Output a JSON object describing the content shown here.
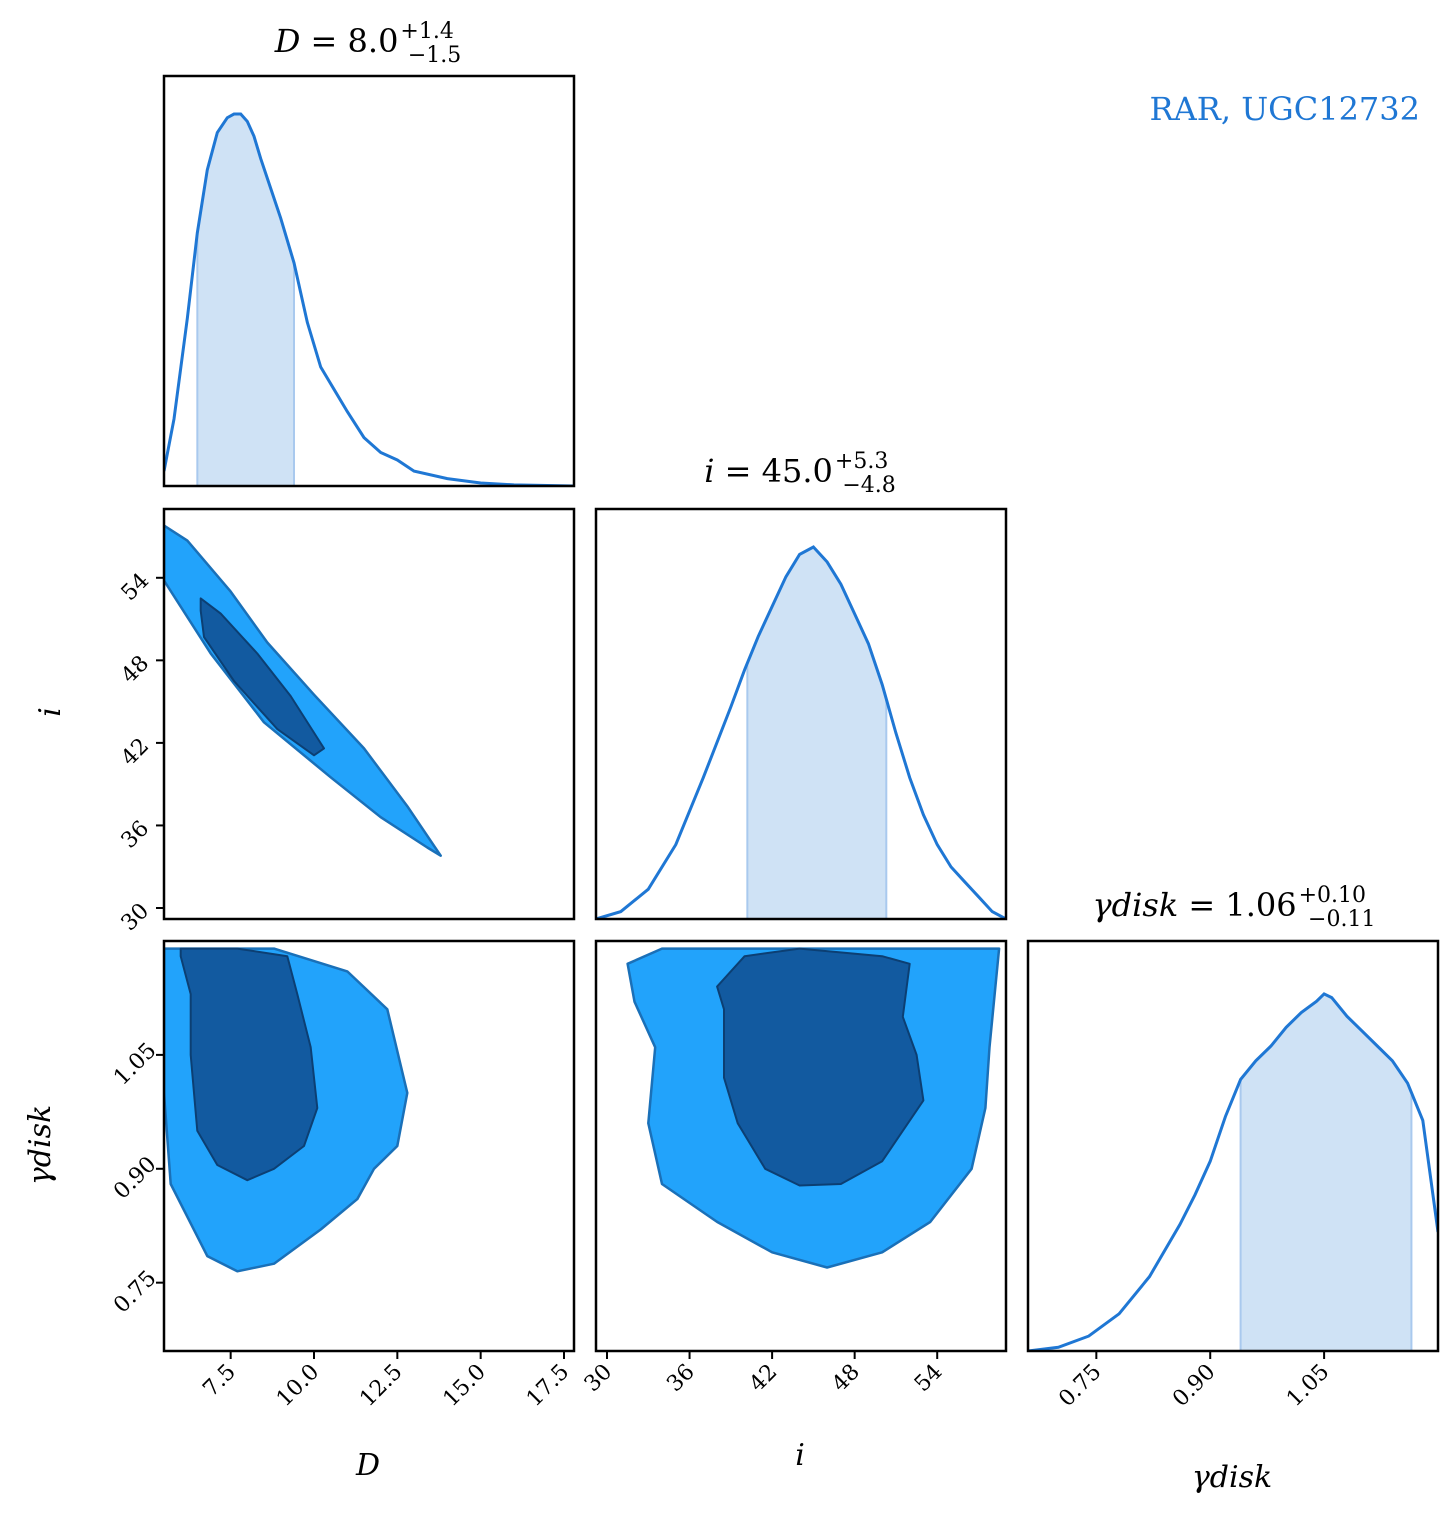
{
  "legend_label": "RAR, UGC12732",
  "colors": {
    "line": "#1f77d4",
    "band": "#cfe2f5",
    "contour_outer": "#22a3fb",
    "contour_inner": "#125aa0",
    "contour_edge": "#1a70b8"
  },
  "chart_data": {
    "type": "corner",
    "params": [
      {
        "symbol": "D",
        "axis_label": "D",
        "title": {
          "lhs": "D",
          "median": "8.0",
          "plus": "+1.4",
          "minus": "−1.5"
        },
        "range": [
          5.5,
          17.8
        ],
        "ticks": [
          "7.5",
          "10.0",
          "12.5",
          "15.0",
          "17.5"
        ],
        "median": 8.0,
        "ci": [
          6.5,
          9.4
        ]
      },
      {
        "symbol": "i",
        "axis_label": "i",
        "title": {
          "lhs": "i",
          "median": "45.0",
          "plus": "+5.3",
          "minus": "−4.8"
        },
        "range": [
          29.2,
          59.0
        ],
        "ticks": [
          "30",
          "36",
          "42",
          "48",
          "54"
        ],
        "median": 45.0,
        "ci": [
          40.2,
          50.3
        ]
      },
      {
        "symbol": "γdisk",
        "axis_label": "γdisk",
        "title": {
          "lhs": "γdisk",
          "median": "1.06",
          "plus": "+0.10",
          "minus": "−0.11"
        },
        "range": [
          0.66,
          1.2
        ],
        "ticks": [
          "0.75",
          "0.90",
          "1.05"
        ],
        "median": 1.06,
        "ci": [
          0.94,
          1.165
        ]
      }
    ],
    "marginals": [
      {
        "param": "D",
        "x": [
          5.5,
          5.8,
          6.2,
          6.5,
          6.8,
          7.1,
          7.4,
          7.6,
          7.8,
          8.0,
          8.2,
          8.4,
          8.7,
          9.0,
          9.4,
          9.8,
          10.2,
          10.6,
          11.0,
          11.5,
          12.0,
          12.5,
          13.0,
          14.0,
          15.0,
          16.0,
          17.8
        ],
        "y": [
          0.04,
          0.18,
          0.45,
          0.68,
          0.85,
          0.95,
          0.99,
          1.0,
          1.0,
          0.98,
          0.94,
          0.88,
          0.8,
          0.72,
          0.6,
          0.44,
          0.32,
          0.26,
          0.2,
          0.13,
          0.09,
          0.07,
          0.04,
          0.02,
          0.008,
          0.003,
          0.0
        ]
      },
      {
        "param": "i",
        "x": [
          29.2,
          31.0,
          33.0,
          35.0,
          37.0,
          39.0,
          40.0,
          41.0,
          42.0,
          43.0,
          44.0,
          45.0,
          46.0,
          47.0,
          48.0,
          49.0,
          50.0,
          51.0,
          52.0,
          53.0,
          54.0,
          55.0,
          56.0,
          57.0,
          58.0,
          59.0
        ],
        "y": [
          0.0,
          0.02,
          0.08,
          0.2,
          0.38,
          0.57,
          0.67,
          0.76,
          0.84,
          0.92,
          0.98,
          1.0,
          0.96,
          0.9,
          0.82,
          0.74,
          0.63,
          0.5,
          0.38,
          0.28,
          0.2,
          0.14,
          0.1,
          0.06,
          0.02,
          0.0
        ]
      },
      {
        "param": "γdisk",
        "x": [
          0.66,
          0.7,
          0.74,
          0.78,
          0.82,
          0.86,
          0.88,
          0.9,
          0.92,
          0.94,
          0.96,
          0.98,
          1.0,
          1.02,
          1.04,
          1.05,
          1.06,
          1.08,
          1.1,
          1.12,
          1.14,
          1.16,
          1.18,
          1.2
        ],
        "y": [
          0.0,
          0.01,
          0.04,
          0.1,
          0.2,
          0.34,
          0.42,
          0.51,
          0.63,
          0.73,
          0.78,
          0.82,
          0.87,
          0.91,
          0.94,
          0.96,
          0.95,
          0.9,
          0.86,
          0.82,
          0.78,
          0.72,
          0.62,
          0.32
        ]
      }
    ],
    "contours": [
      {
        "x_param": "D",
        "y_param": "i",
        "outer": [
          [
            5.5,
            57.8
          ],
          [
            6.2,
            56.7
          ],
          [
            7.5,
            53.0
          ],
          [
            8.6,
            49.3
          ],
          [
            10.0,
            45.5
          ],
          [
            11.5,
            41.6
          ],
          [
            12.8,
            37.4
          ],
          [
            13.8,
            33.8
          ],
          [
            13.4,
            34.4
          ],
          [
            12.0,
            36.6
          ],
          [
            10.5,
            39.5
          ],
          [
            8.5,
            43.5
          ],
          [
            6.9,
            48.5
          ],
          [
            5.5,
            53.8
          ]
        ],
        "inner": [
          [
            6.6,
            52.5
          ],
          [
            7.2,
            51.4
          ],
          [
            8.3,
            48.5
          ],
          [
            9.3,
            45.4
          ],
          [
            10.3,
            41.6
          ],
          [
            10.0,
            41.1
          ],
          [
            8.9,
            43.0
          ],
          [
            7.6,
            46.5
          ],
          [
            6.7,
            49.7
          ],
          [
            6.6,
            51.6
          ]
        ]
      },
      {
        "x_param": "D",
        "y_param": "γdisk",
        "outer": [
          [
            5.5,
            1.19
          ],
          [
            8.8,
            1.19
          ],
          [
            11.0,
            1.16
          ],
          [
            12.2,
            1.11
          ],
          [
            12.8,
            1.0
          ],
          [
            12.5,
            0.93
          ],
          [
            11.8,
            0.9
          ],
          [
            11.3,
            0.86
          ],
          [
            10.2,
            0.82
          ],
          [
            8.8,
            0.775
          ],
          [
            7.7,
            0.765
          ],
          [
            6.8,
            0.785
          ],
          [
            5.7,
            0.88
          ],
          [
            5.5,
            1.0
          ]
        ],
        "inner": [
          [
            6.0,
            1.19
          ],
          [
            7.7,
            1.19
          ],
          [
            9.2,
            1.18
          ],
          [
            9.5,
            1.13
          ],
          [
            9.9,
            1.06
          ],
          [
            10.1,
            0.98
          ],
          [
            9.7,
            0.93
          ],
          [
            8.8,
            0.9
          ],
          [
            8.0,
            0.885
          ],
          [
            7.1,
            0.905
          ],
          [
            6.5,
            0.95
          ],
          [
            6.3,
            1.05
          ],
          [
            6.3,
            1.13
          ],
          [
            6.0,
            1.18
          ]
        ]
      },
      {
        "x_param": "i",
        "y_param": "γdisk",
        "outer": [
          [
            31.5,
            1.17
          ],
          [
            34.0,
            1.19
          ],
          [
            42.0,
            1.19
          ],
          [
            55.0,
            1.19
          ],
          [
            58.5,
            1.19
          ],
          [
            57.8,
            1.06
          ],
          [
            57.5,
            0.98
          ],
          [
            56.5,
            0.9
          ],
          [
            53.5,
            0.83
          ],
          [
            50.0,
            0.79
          ],
          [
            46.0,
            0.77
          ],
          [
            42.0,
            0.79
          ],
          [
            38.0,
            0.83
          ],
          [
            34.0,
            0.88
          ],
          [
            33.0,
            0.96
          ],
          [
            33.5,
            1.06
          ],
          [
            32.0,
            1.12
          ]
        ],
        "inner": [
          [
            38.0,
            1.14
          ],
          [
            40.0,
            1.18
          ],
          [
            44.0,
            1.19
          ],
          [
            50.0,
            1.18
          ],
          [
            52.0,
            1.17
          ],
          [
            51.5,
            1.1
          ],
          [
            52.5,
            1.05
          ],
          [
            53.0,
            0.99
          ],
          [
            51.5,
            0.95
          ],
          [
            50.0,
            0.91
          ],
          [
            47.0,
            0.88
          ],
          [
            44.0,
            0.878
          ],
          [
            41.5,
            0.9
          ],
          [
            39.5,
            0.96
          ],
          [
            38.5,
            1.02
          ],
          [
            38.5,
            1.11
          ]
        ]
      }
    ]
  }
}
